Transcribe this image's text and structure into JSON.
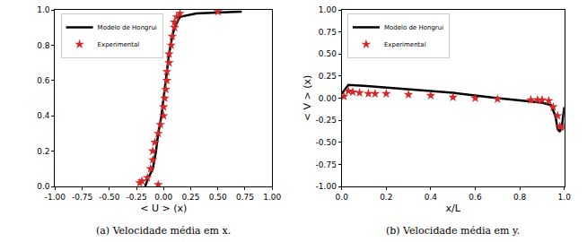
{
  "chart_data": [
    {
      "type": "line",
      "x_label": "< U > (x)",
      "annotations": [
        "(a) Velocidade média em x."
      ],
      "legend": "upper left",
      "xlim": [
        -1,
        1
      ],
      "xticks": [
        {
          "value": -1,
          "label": "-1.00"
        },
        {
          "value": -0.75,
          "label": "-0.75"
        },
        {
          "value": -0.5,
          "label": "-0.50"
        },
        {
          "value": -0.25,
          "label": "-0.25"
        },
        {
          "value": 0,
          "label": "0.00"
        },
        {
          "value": 0.25,
          "label": "0.25"
        },
        {
          "value": 0.5,
          "label": "0.50"
        },
        {
          "value": 0.75,
          "label": "0.75"
        },
        {
          "value": 1,
          "label": "1.00"
        }
      ],
      "ylim": [
        0,
        1
      ],
      "yticks": [
        {
          "value": 0,
          "label": "0.0"
        },
        0.2,
        0.4,
        0.6,
        0.8,
        {
          "value": 1,
          "label": "1.0"
        }
      ],
      "series": [
        {
          "name": "Modelo de Hongrui",
          "type": "line",
          "color": "#000000",
          "line_style": "solid",
          "x": [
            -0.17,
            -0.14,
            -0.1,
            -0.07,
            -0.05,
            -0.02,
            0,
            0.03,
            0.05,
            0.08,
            0.1,
            0.15,
            0.3,
            0.72
          ],
          "values": [
            0,
            0.05,
            0.1,
            0.2,
            0.3,
            0.4,
            0.5,
            0.65,
            0.75,
            0.85,
            0.9,
            0.96,
            0.98,
            0.99
          ]
        },
        {
          "name": "Experimental",
          "type": "scatter",
          "color": "#d62728",
          "marker": "star",
          "x": [
            -0.22,
            -0.2,
            -0.15,
            -0.05,
            -0.12,
            -0.1,
            -0.1,
            -0.08,
            -0.05,
            -0.03,
            0,
            0,
            0.01,
            0.02,
            0.03,
            0.03,
            0.05,
            0.05,
            0.07,
            0.08,
            0.1,
            0.1,
            0.12,
            0.15,
            0.5
          ],
          "values": [
            0.02,
            0.03,
            0.05,
            0.01,
            0.1,
            0.15,
            0.2,
            0.25,
            0.3,
            0.35,
            0.4,
            0.45,
            0.5,
            0.55,
            0.6,
            0.65,
            0.7,
            0.75,
            0.8,
            0.85,
            0.9,
            0.93,
            0.96,
            0.98,
            0.99
          ]
        }
      ]
    },
    {
      "type": "line",
      "x_label": "x/L",
      "y_label": "< V > (x)",
      "annotations": [
        "(b) Velocidade média em y."
      ],
      "legend": "upper left",
      "xlim": [
        0,
        1
      ],
      "xticks": [
        {
          "value": 0,
          "label": "0.0"
        },
        0.2,
        0.4,
        0.6,
        0.8,
        {
          "value": 1,
          "label": "1.0"
        }
      ],
      "ylim": [
        -1,
        1
      ],
      "yticks": [
        {
          "value": -1,
          "label": "-1.00"
        },
        {
          "value": -0.75,
          "label": "-0.75"
        },
        {
          "value": -0.5,
          "label": "-0.50"
        },
        {
          "value": -0.25,
          "label": "-0.25"
        },
        {
          "value": 0,
          "label": "0.00"
        },
        {
          "value": 0.25,
          "label": "0.25"
        },
        {
          "value": 0.5,
          "label": "0.50"
        },
        {
          "value": 0.75,
          "label": "0.75"
        },
        {
          "value": 1,
          "label": "1.00"
        }
      ],
      "series": [
        {
          "name": "Modelo de Hongrui",
          "type": "line",
          "color": "#000000",
          "line_style": "solid",
          "x": [
            0,
            0.03,
            0.1,
            0.3,
            0.5,
            0.7,
            0.9,
            0.94,
            0.96,
            0.97,
            0.98,
            0.99,
            1
          ],
          "values": [
            0.05,
            0.15,
            0.14,
            0.1,
            0.06,
            0,
            -0.05,
            -0.08,
            -0.2,
            -0.35,
            -0.38,
            -0.3,
            -0.1
          ]
        },
        {
          "name": "Experimental",
          "type": "scatter",
          "color": "#d62728",
          "marker": "star",
          "x": [
            0.01,
            0.03,
            0.05,
            0.08,
            0.12,
            0.15,
            0.2,
            0.3,
            0.4,
            0.5,
            0.6,
            0.7,
            0.85,
            0.88,
            0.9,
            0.93,
            0.95,
            0.97,
            0.98,
            1
          ],
          "values": [
            0.02,
            0.08,
            0.07,
            0.06,
            0.05,
            0.05,
            0.05,
            0.04,
            0.03,
            0.01,
            0,
            -0.01,
            -0.02,
            -0.02,
            -0.02,
            -0.03,
            -0.1,
            -0.2,
            -0.32,
            -0.33
          ]
        }
      ]
    }
  ]
}
